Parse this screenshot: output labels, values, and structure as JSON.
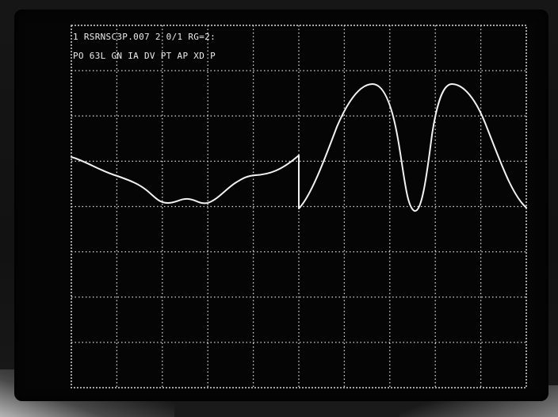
{
  "screen": {
    "status_line_1": "1 RSRNSC3P.007 2 0/1 RG=2:",
    "status_line_2": "PO 63L GN IA DV PT AP XD P",
    "trace_color": "#f2f2f2",
    "grid_color": "#d8d8d8"
  },
  "grid": {
    "columns": 10,
    "rows": 8
  }
}
